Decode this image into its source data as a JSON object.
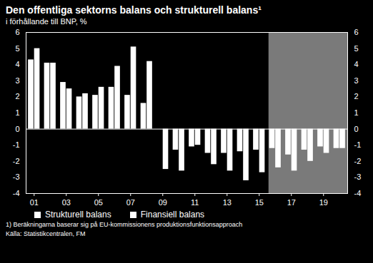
{
  "chart_data": {
    "type": "bar",
    "title": "Den offentliga sektorns balans och strukturell balans¹",
    "subtitle": "i förhållande till BNP, %",
    "footnote": "1) Beräkningarna baserar sig på EU-kommissionens produktionsfunktionsapproach",
    "source": "Källa: Statistikcentralen, FM",
    "x": [
      2001,
      2002,
      2003,
      2004,
      2005,
      2006,
      2007,
      2008,
      2009,
      2010,
      2011,
      2012,
      2013,
      2014,
      2015,
      2016,
      2017,
      2018,
      2019,
      2020
    ],
    "series": [
      {
        "name": "Strukturell balans",
        "color": "#ffffff",
        "values": [
          4.3,
          4.1,
          2.9,
          2.0,
          2.1,
          2.6,
          2.1,
          1.6,
          0,
          -1.3,
          -1.1,
          -1.5,
          -1.5,
          -1.4,
          -1.3,
          -1.2,
          -1.6,
          -1.3,
          -1.1,
          -1.2
        ]
      },
      {
        "name": "Finansiell balans",
        "color": "#ffffff",
        "values": [
          5.0,
          4.1,
          2.5,
          2.2,
          2.6,
          3.9,
          5.1,
          4.2,
          -2.5,
          -2.6,
          -1.0,
          -2.2,
          -2.6,
          -3.2,
          -2.7,
          -2.4,
          -2.6,
          -2.0,
          -1.5,
          -1.2
        ]
      }
    ],
    "xlim": [
      2000.5,
      2020.5
    ],
    "xticks": [
      {
        "value": 2001,
        "label": "01"
      },
      {
        "value": 2003,
        "label": "03"
      },
      {
        "value": 2005,
        "label": "05"
      },
      {
        "value": 2007,
        "label": "07"
      },
      {
        "value": 2009,
        "label": "09"
      },
      {
        "value": 2011,
        "label": "11"
      },
      {
        "value": 2013,
        "label": "13"
      },
      {
        "value": 2015,
        "label": "15"
      },
      {
        "value": 2017,
        "label": "17"
      },
      {
        "value": 2019,
        "label": "19"
      }
    ],
    "ylim": [
      -4,
      6
    ],
    "yticks": [
      -4,
      -3,
      -2,
      -1,
      0,
      1,
      2,
      3,
      4,
      5,
      6
    ],
    "shaded_x": [
      2015.6,
      2020.5
    ],
    "grid": false,
    "legend": "bottom"
  }
}
